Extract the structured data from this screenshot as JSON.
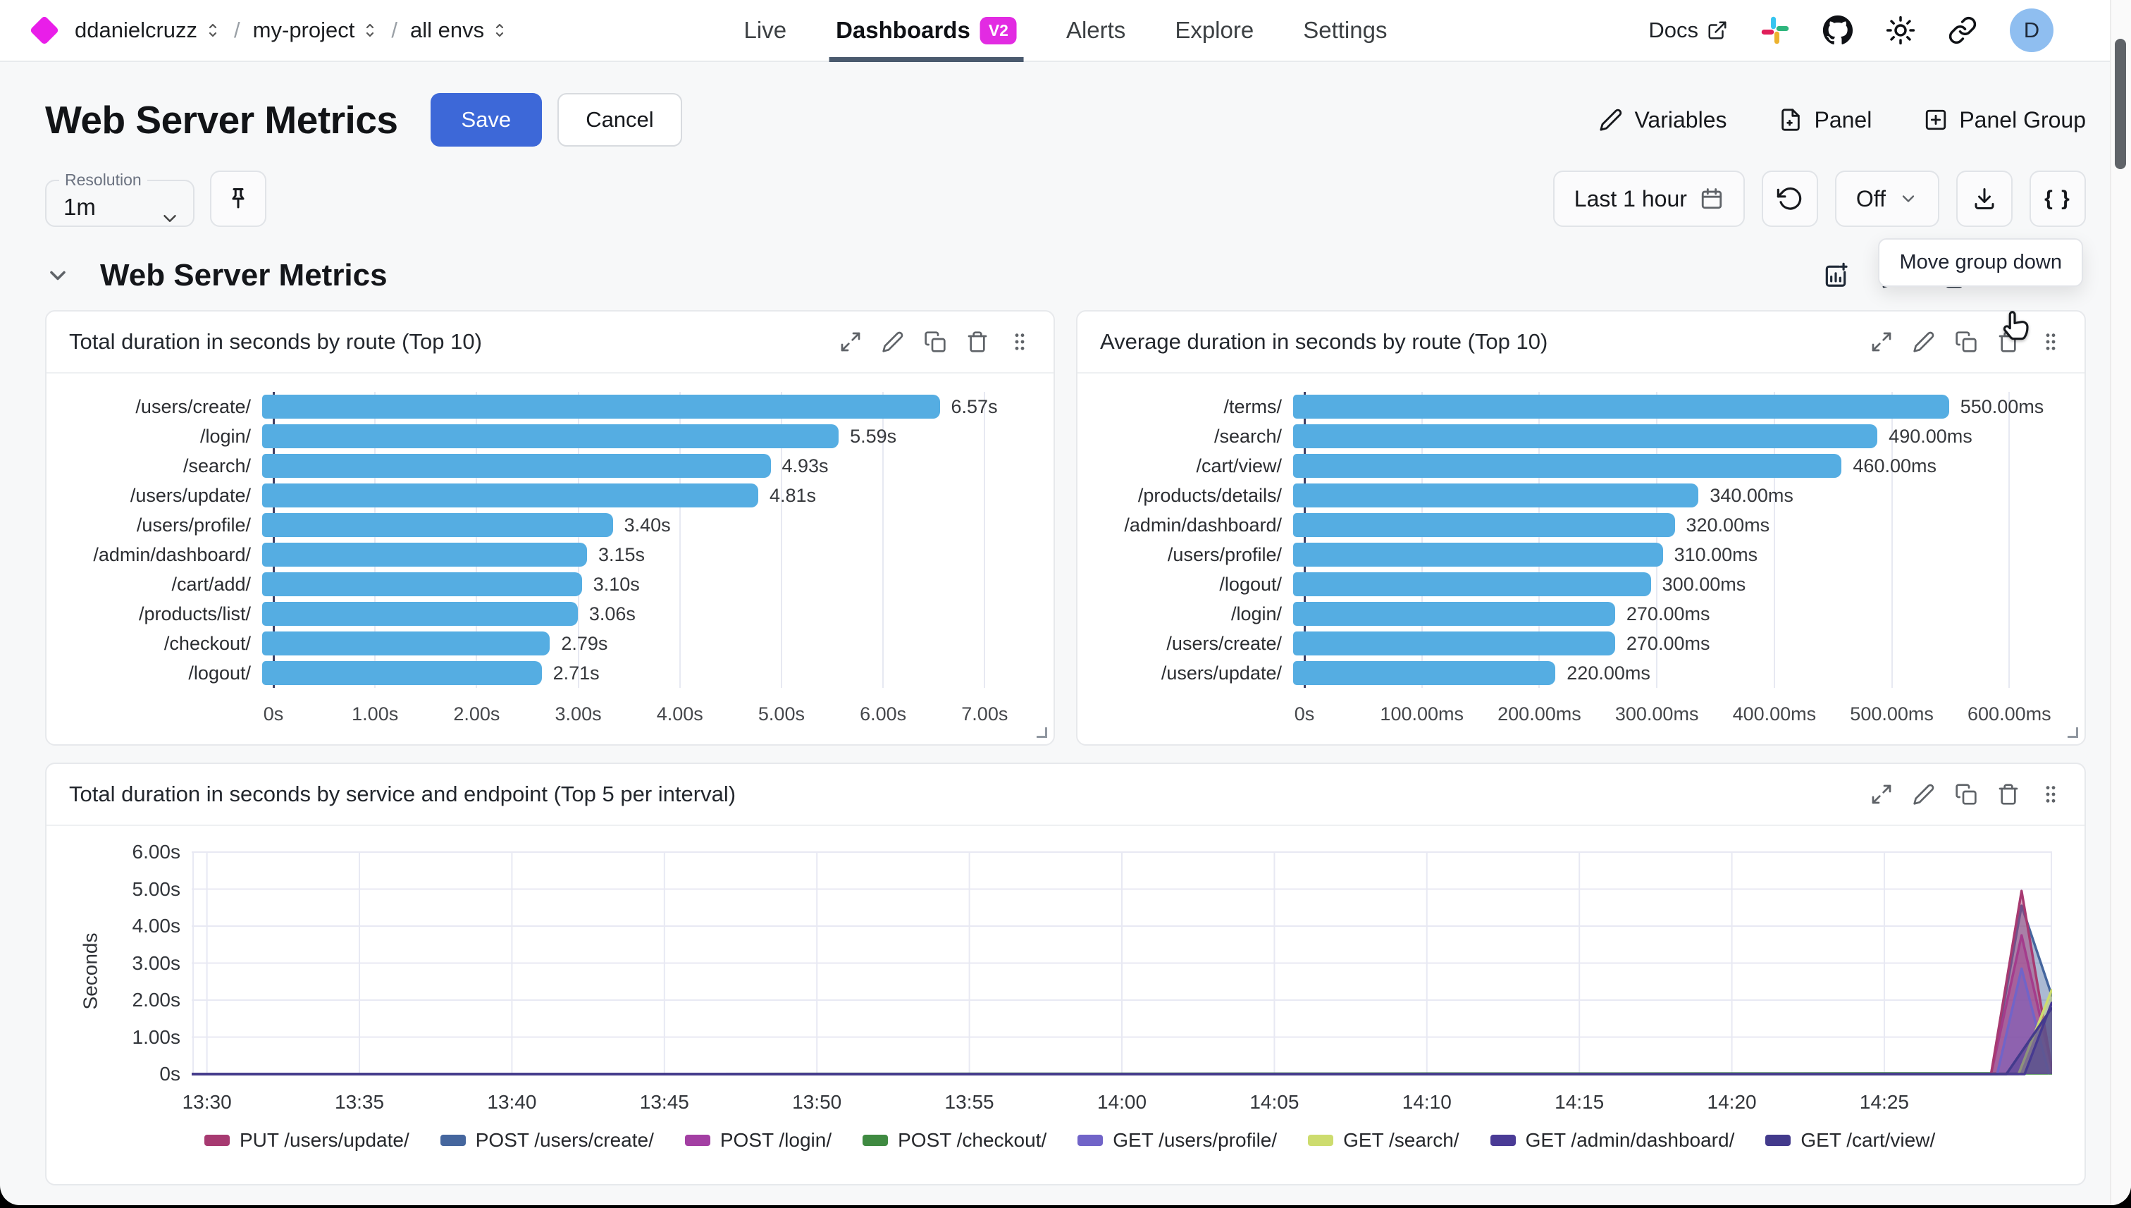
{
  "topnav": {
    "breadcrumb": [
      {
        "label": "ddanielcruzz"
      },
      {
        "label": "my-project"
      },
      {
        "label": "all envs"
      }
    ],
    "tabs": [
      {
        "label": "Live",
        "active": false
      },
      {
        "label": "Dashboards",
        "active": true,
        "badge": "V2"
      },
      {
        "label": "Alerts",
        "active": false
      },
      {
        "label": "Explore",
        "active": false
      },
      {
        "label": "Settings",
        "active": false
      }
    ],
    "docs_label": "Docs",
    "avatar_initial": "D"
  },
  "page": {
    "title": "Web Server Metrics",
    "save_label": "Save",
    "cancel_label": "Cancel",
    "variables_label": "Variables",
    "panel_label": "Panel",
    "panel_group_label": "Panel Group",
    "resolution_label": "Resolution",
    "resolution_value": "1m",
    "time_range_label": "Last 1 hour",
    "auto_refresh_label": "Off",
    "braces_label": "{ }",
    "tooltip": "Move group down",
    "group_title": "Web Server Metrics"
  },
  "chart_data": [
    {
      "type": "bar",
      "orientation": "horizontal",
      "title": "Total duration in seconds by route (Top 10)",
      "categories": [
        "/users/create/",
        "/login/",
        "/search/",
        "/users/update/",
        "/users/profile/",
        "/admin/dashboard/",
        "/cart/add/",
        "/products/list/",
        "/checkout/",
        "/logout/"
      ],
      "values": [
        6.57,
        5.59,
        4.93,
        4.81,
        3.4,
        3.15,
        3.1,
        3.06,
        2.79,
        2.71
      ],
      "value_labels": [
        "6.57s",
        "5.59s",
        "4.93s",
        "4.81s",
        "3.40s",
        "3.15s",
        "3.10s",
        "3.06s",
        "2.79s",
        "2.71s"
      ],
      "x_ticks": [
        {
          "v": 0,
          "label": "0s"
        },
        {
          "v": 1,
          "label": "1.00s"
        },
        {
          "v": 2,
          "label": "2.00s"
        },
        {
          "v": 3,
          "label": "3.00s"
        },
        {
          "v": 4,
          "label": "4.00s"
        },
        {
          "v": 5,
          "label": "5.00s"
        },
        {
          "v": 6,
          "label": "6.00s"
        },
        {
          "v": 7,
          "label": "7.00s"
        }
      ],
      "axis_max": 7.4,
      "bar_color": "#55ade2",
      "grid": true
    },
    {
      "type": "bar",
      "orientation": "horizontal",
      "title": "Average duration in seconds by route (Top 10)",
      "categories": [
        "/terms/",
        "/search/",
        "/cart/view/",
        "/products/details/",
        "/admin/dashboard/",
        "/users/profile/",
        "/logout/",
        "/login/",
        "/users/create/",
        "/users/update/"
      ],
      "values": [
        550,
        490,
        460,
        340,
        320,
        310,
        300,
        270,
        270,
        220
      ],
      "value_labels": [
        "550.00ms",
        "490.00ms",
        "460.00ms",
        "340.00ms",
        "320.00ms",
        "310.00ms",
        "300.00ms",
        "270.00ms",
        "270.00ms",
        "220.00ms"
      ],
      "x_ticks": [
        {
          "v": 0,
          "label": "0s"
        },
        {
          "v": 100,
          "label": "100.00ms"
        },
        {
          "v": 200,
          "label": "200.00ms"
        },
        {
          "v": 300,
          "label": "300.00ms"
        },
        {
          "v": 400,
          "label": "400.00ms"
        },
        {
          "v": 500,
          "label": "500.00ms"
        },
        {
          "v": 600,
          "label": "600.00ms"
        }
      ],
      "axis_max": 640,
      "bar_color": "#55ade2",
      "grid": true
    },
    {
      "type": "area",
      "title": "Total duration in seconds by service and endpoint (Top 5 per interval)",
      "ylabel": "Seconds",
      "y_max": 6,
      "y_ticks": [
        {
          "v": 0,
          "label": "0s"
        },
        {
          "v": 1,
          "label": "1.00s"
        },
        {
          "v": 2,
          "label": "2.00s"
        },
        {
          "v": 3,
          "label": "3.00s"
        },
        {
          "v": 4,
          "label": "4.00s"
        },
        {
          "v": 5,
          "label": "5.00s"
        },
        {
          "v": 6,
          "label": "6.00s"
        }
      ],
      "x_domain": [
        0,
        61
      ],
      "x_ticks": [
        {
          "m": 0.5,
          "label": "13:30"
        },
        {
          "m": 5.5,
          "label": "13:35"
        },
        {
          "m": 10.5,
          "label": "13:40"
        },
        {
          "m": 15.5,
          "label": "13:45"
        },
        {
          "m": 20.5,
          "label": "13:50"
        },
        {
          "m": 25.5,
          "label": "13:55"
        },
        {
          "m": 30.5,
          "label": "14:00"
        },
        {
          "m": 35.5,
          "label": "14:05"
        },
        {
          "m": 40.5,
          "label": "14:10"
        },
        {
          "m": 45.5,
          "label": "14:15"
        },
        {
          "m": 50.5,
          "label": "14:20"
        },
        {
          "m": 55.5,
          "label": "14:25"
        }
      ],
      "series": [
        {
          "name": "PUT /users/update/",
          "color": "#a73a71",
          "points": [
            [
              0,
              0
            ],
            [
              59,
              0
            ],
            [
              60,
              4.95
            ],
            [
              61,
              0.1
            ]
          ]
        },
        {
          "name": "POST /users/create/",
          "color": "#45669e",
          "points": [
            [
              0,
              0
            ],
            [
              59,
              0
            ],
            [
              60,
              4.55
            ],
            [
              61,
              2.1
            ]
          ]
        },
        {
          "name": "POST /login/",
          "color": "#a33fa3",
          "points": [
            [
              0,
              0
            ],
            [
              59,
              0
            ],
            [
              60,
              3.75
            ],
            [
              61,
              0.15
            ]
          ]
        },
        {
          "name": "POST /checkout/",
          "color": "#3f8a41",
          "points": [
            [
              0,
              0
            ],
            [
              61,
              0.02
            ]
          ]
        },
        {
          "name": "GET /users/profile/",
          "color": "#7164c8",
          "points": [
            [
              0,
              0
            ],
            [
              59.2,
              0
            ],
            [
              60,
              2.85
            ],
            [
              60.9,
              0
            ]
          ]
        },
        {
          "name": "GET /search/",
          "color": "#cddc6e",
          "points": [
            [
              0,
              0
            ],
            [
              59.9,
              0
            ],
            [
              61,
              2.3
            ]
          ]
        },
        {
          "name": "GET /admin/dashboard/",
          "color": "#4a3b96",
          "points": [
            [
              0,
              0
            ],
            [
              60.1,
              0
            ],
            [
              61,
              1.95
            ]
          ]
        },
        {
          "name": "GET /cart/view/",
          "color": "#433a8c",
          "points": [
            [
              0,
              0
            ],
            [
              59.5,
              0
            ],
            [
              61,
              1.8
            ]
          ]
        }
      ],
      "render_order": [
        3,
        1,
        2,
        0,
        4,
        5,
        6,
        7
      ],
      "grid": true,
      "legend_position": "bottom"
    }
  ]
}
